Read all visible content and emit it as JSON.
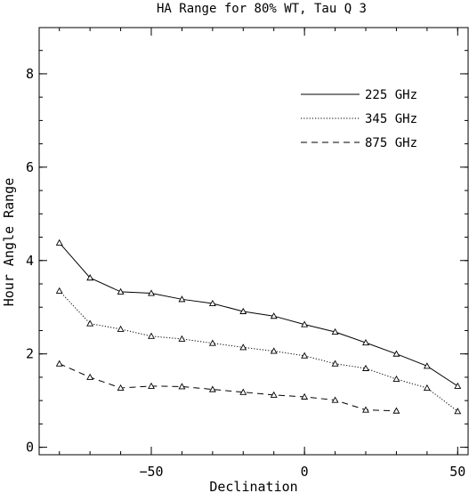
{
  "chart_data": {
    "type": "line",
    "title": "HA Range for 80% WT, Tau Q 3",
    "xlabel": "Declination",
    "ylabel": "Hour Angle Range",
    "xlim": [
      -86.6,
      53.4
    ],
    "ylim": [
      -0.16,
      8.99
    ],
    "xticks": [
      -50,
      0,
      50
    ],
    "yticks": [
      0,
      2,
      4,
      6,
      8
    ],
    "grid": false,
    "legend_position": "top-right",
    "series": [
      {
        "name": "225 GHz",
        "line_style": "solid",
        "marker": "open-triangle",
        "x": [
          -80,
          -70,
          -60,
          -50,
          -40,
          -30,
          -20,
          -10,
          0,
          10,
          20,
          30,
          40,
          50
        ],
        "y": [
          4.38,
          3.63,
          3.33,
          3.3,
          3.17,
          3.08,
          2.91,
          2.81,
          2.63,
          2.47,
          2.24,
          2.0,
          1.74,
          1.31
        ]
      },
      {
        "name": "345 GHz",
        "line_style": "dotted",
        "marker": "open-triangle",
        "x": [
          -80,
          -70,
          -60,
          -50,
          -40,
          -30,
          -20,
          -10,
          0,
          10,
          20,
          30,
          40,
          50
        ],
        "y": [
          3.35,
          2.65,
          2.53,
          2.38,
          2.32,
          2.23,
          2.14,
          2.06,
          1.96,
          1.79,
          1.69,
          1.46,
          1.27,
          0.77
        ]
      },
      {
        "name": "875 GHz",
        "line_style": "dashed",
        "marker": "open-triangle",
        "x": [
          -80,
          -70,
          -60,
          -50,
          -40,
          -30,
          -20,
          -10,
          0,
          10,
          20,
          30
        ],
        "y": [
          1.79,
          1.5,
          1.27,
          1.31,
          1.3,
          1.24,
          1.18,
          1.12,
          1.08,
          1.01,
          0.8,
          0.78
        ]
      }
    ]
  }
}
